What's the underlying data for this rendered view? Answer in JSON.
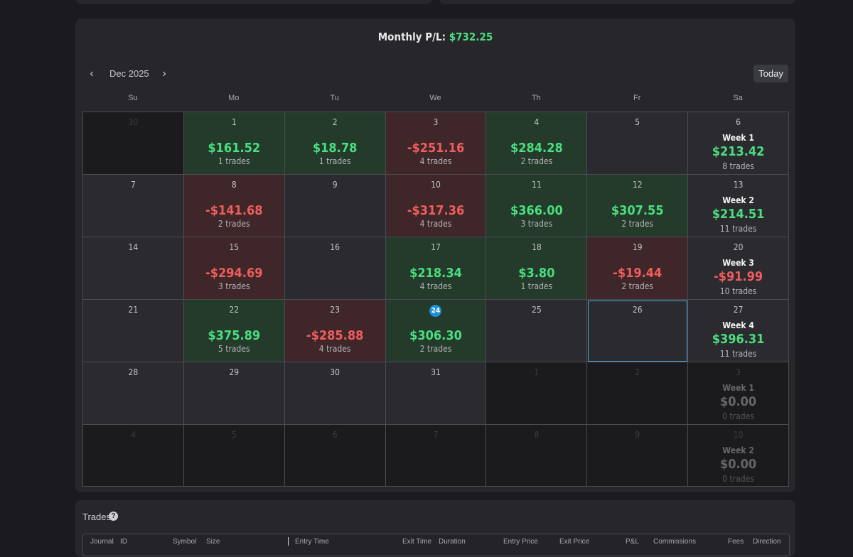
{
  "monthly": {
    "label": "Monthly P/L:",
    "value": "$732.25"
  },
  "nav": {
    "prev_icon": "chevron-left-icon",
    "next_icon": "chevron-right-icon",
    "prev_glyph": "‹",
    "next_glyph": "›",
    "month": "Dec 2025",
    "today": "Today"
  },
  "days_of_week": [
    "Su",
    "Mo",
    "Tu",
    "We",
    "Th",
    "Fr",
    "Sa"
  ],
  "weeks": [
    {
      "days": [
        {
          "d": "30",
          "out": true
        },
        {
          "d": "1",
          "amt": "$161.52",
          "trades": "1 trades",
          "pl": "pos"
        },
        {
          "d": "2",
          "amt": "$18.78",
          "trades": "1 trades",
          "pl": "pos"
        },
        {
          "d": "3",
          "amt": "-$251.16",
          "trades": "4 trades",
          "pl": "neg"
        },
        {
          "d": "4",
          "amt": "$284.28",
          "trades": "2 trades",
          "pl": "pos"
        },
        {
          "d": "5"
        }
      ],
      "summary": {
        "d": "6",
        "label": "Week 1",
        "amt": "$213.42",
        "trades": "8 trades",
        "pl": "pos"
      }
    },
    {
      "days": [
        {
          "d": "7"
        },
        {
          "d": "8",
          "amt": "-$141.68",
          "trades": "2 trades",
          "pl": "neg"
        },
        {
          "d": "9"
        },
        {
          "d": "10",
          "amt": "-$317.36",
          "trades": "4 trades",
          "pl": "neg"
        },
        {
          "d": "11",
          "amt": "$366.00",
          "trades": "3 trades",
          "pl": "pos"
        },
        {
          "d": "12",
          "amt": "$307.55",
          "trades": "2 trades",
          "pl": "pos"
        }
      ],
      "summary": {
        "d": "13",
        "label": "Week 2",
        "amt": "$214.51",
        "trades": "11 trades",
        "pl": "pos"
      }
    },
    {
      "days": [
        {
          "d": "14"
        },
        {
          "d": "15",
          "amt": "-$294.69",
          "trades": "3 trades",
          "pl": "neg"
        },
        {
          "d": "16"
        },
        {
          "d": "17",
          "amt": "$218.34",
          "trades": "4 trades",
          "pl": "pos"
        },
        {
          "d": "18",
          "amt": "$3.80",
          "trades": "1 trades",
          "pl": "pos"
        },
        {
          "d": "19",
          "amt": "-$19.44",
          "trades": "2 trades",
          "pl": "neg"
        }
      ],
      "summary": {
        "d": "20",
        "label": "Week 3",
        "amt": "-$91.99",
        "trades": "10 trades",
        "pl": "neg"
      }
    },
    {
      "days": [
        {
          "d": "21"
        },
        {
          "d": "22",
          "amt": "$375.89",
          "trades": "5 trades",
          "pl": "pos"
        },
        {
          "d": "23",
          "amt": "-$285.88",
          "trades": "4 trades",
          "pl": "neg"
        },
        {
          "d": "24",
          "amt": "$306.30",
          "trades": "2 trades",
          "pl": "pos",
          "today": true
        },
        {
          "d": "25"
        },
        {
          "d": "26",
          "selected": true
        }
      ],
      "summary": {
        "d": "27",
        "label": "Week 4",
        "amt": "$396.31",
        "trades": "11 trades",
        "pl": "pos"
      }
    },
    {
      "days": [
        {
          "d": "28"
        },
        {
          "d": "29"
        },
        {
          "d": "30"
        },
        {
          "d": "31"
        },
        {
          "d": "1",
          "out": true
        },
        {
          "d": "2",
          "out": true
        }
      ],
      "summary": {
        "d": "3",
        "label": "Week 1",
        "amt": "$0.00",
        "trades": "0 trades",
        "dim": true
      }
    },
    {
      "days": [
        {
          "d": "4",
          "out": true
        },
        {
          "d": "5",
          "out": true
        },
        {
          "d": "6",
          "out": true
        },
        {
          "d": "7",
          "out": true
        },
        {
          "d": "8",
          "out": true
        },
        {
          "d": "9",
          "out": true
        }
      ],
      "summary": {
        "d": "10",
        "label": "Week 2",
        "amt": "$0.00",
        "trades": "0 trades",
        "dim": true
      }
    }
  ],
  "trades_panel": {
    "title": "Trades",
    "help_glyph": "?",
    "columns": [
      "Journal",
      "ID",
      "Symbol",
      "Size",
      "Entry Time",
      "Exit Time",
      "Duration",
      "Entry Price",
      "Exit Price",
      "P&L",
      "Commissions",
      "Fees",
      "Direction"
    ]
  }
}
